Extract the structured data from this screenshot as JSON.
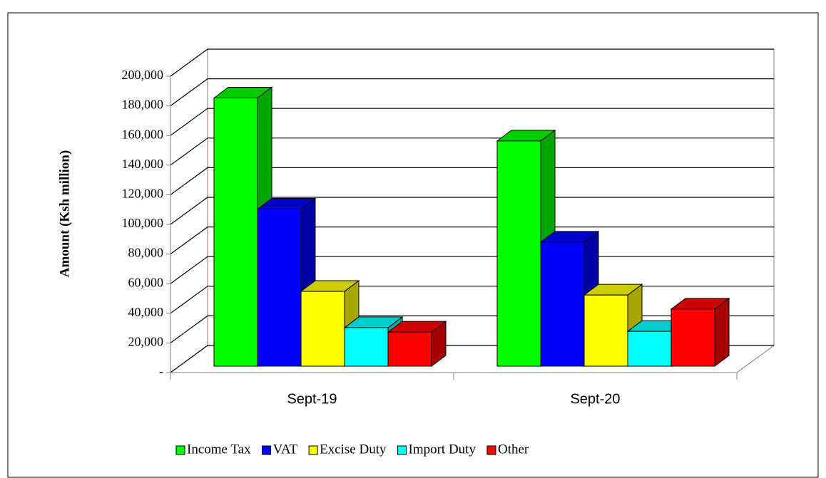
{
  "chart_data": {
    "type": "bar3d",
    "y_label": "Amount  (Ksh million)",
    "categories": [
      "Sept-19",
      "Sept-20"
    ],
    "series": [
      {
        "name": "Income Tax",
        "color": "#00ff00",
        "values": [
          181000,
          152000
        ]
      },
      {
        "name": "VAT",
        "color": "#0000ff",
        "values": [
          106000,
          83700
        ]
      },
      {
        "name": "Excise Duty",
        "color": "#ffff00",
        "values": [
          50500,
          48000
        ]
      },
      {
        "name": "Import Duty",
        "color": "#00ffff",
        "values": [
          26000,
          23500
        ]
      },
      {
        "name": "Other",
        "color": "#ff0000",
        "values": [
          23000,
          38500
        ]
      }
    ],
    "ylim": [
      0,
      200000
    ],
    "yticks": [
      {
        "value": 0,
        "label": "-"
      },
      {
        "value": 20000,
        "label": "20,000"
      },
      {
        "value": 40000,
        "label": "40,000"
      },
      {
        "value": 60000,
        "label": "60,000"
      },
      {
        "value": 80000,
        "label": "80,000"
      },
      {
        "value": 100000,
        "label": "100,000"
      },
      {
        "value": 120000,
        "label": "120,000"
      },
      {
        "value": 140000,
        "label": "140,000"
      },
      {
        "value": 160000,
        "label": "160,000"
      },
      {
        "value": 180000,
        "label": "180,000"
      },
      {
        "value": 200000,
        "label": "200,000"
      }
    ],
    "grid": true,
    "legend": "bottom"
  }
}
